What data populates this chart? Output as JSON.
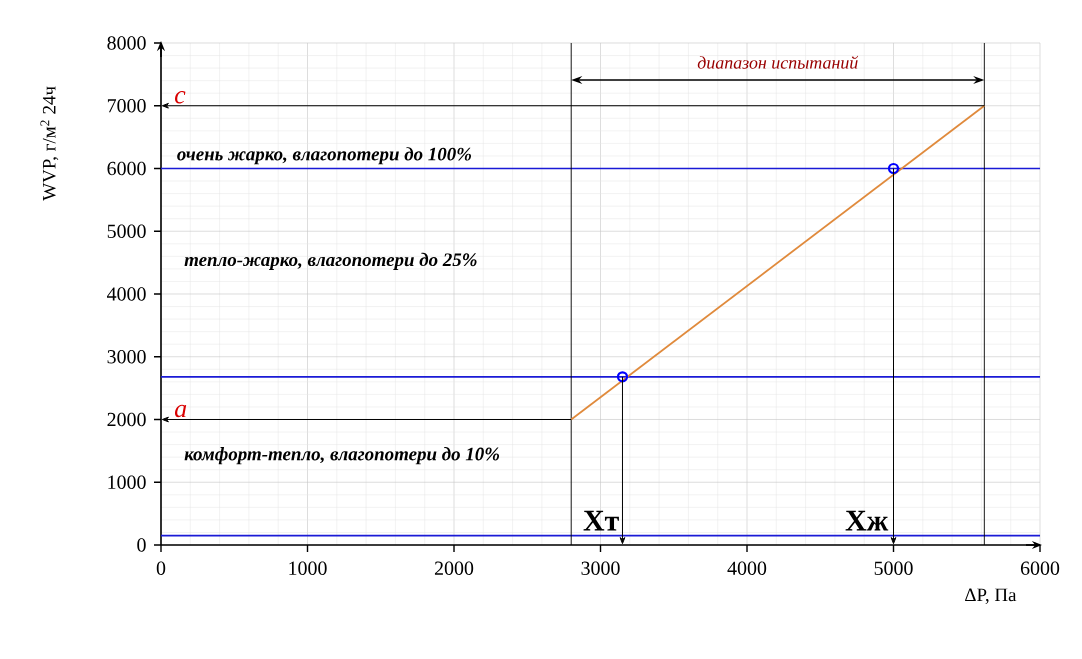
{
  "chart_data": {
    "type": "line",
    "xlabel": "ΔP, Па",
    "ylabel": "WVP, г/м$^{2}$ 24ч",
    "xlim": [
      0,
      6000
    ],
    "ylim": [
      0,
      8000
    ],
    "xticks": [
      0,
      1000,
      2000,
      3000,
      4000,
      5000,
      6000
    ],
    "yticks": [
      0,
      1000,
      2000,
      3000,
      4000,
      5000,
      6000,
      7000,
      8000
    ],
    "grid": true,
    "series": [
      {
        "color": "#e08a3c",
        "x": [
          2800,
          5620
        ],
        "values": [
          2000,
          7000
        ]
      },
      {
        "type": "scatter",
        "color": "#0000ff",
        "marker": "circle",
        "x": [
          3150,
          5000
        ],
        "values": [
          2680,
          6000
        ]
      }
    ],
    "ref_lines": [
      {
        "axis": "y",
        "value": 6000,
        "color": "#1a1ad6"
      },
      {
        "axis": "y",
        "value": 2680,
        "color": "#1a1ad6"
      },
      {
        "axis": "y",
        "value": 150,
        "color": "#1a1ad6"
      },
      {
        "axis": "x",
        "value": 2800,
        "color": "#000000"
      },
      {
        "axis": "x",
        "value": 5620,
        "color": "#000000"
      }
    ],
    "annotations": [
      "c",
      "a",
      {
        "text": "очень жарко, влагопотери до 100%",
        "x": 100,
        "y": 6000
      },
      "тепло-жарко, влагопотери до 25%",
      "комфорт-тепло, влагопотери до 10%",
      "диапазон испытаний",
      {
        "text": "Хт",
        "x": 3150,
        "y": 150
      },
      {
        "text": "Хж",
        "x": 5000,
        "y": 150
      }
    ]
  }
}
